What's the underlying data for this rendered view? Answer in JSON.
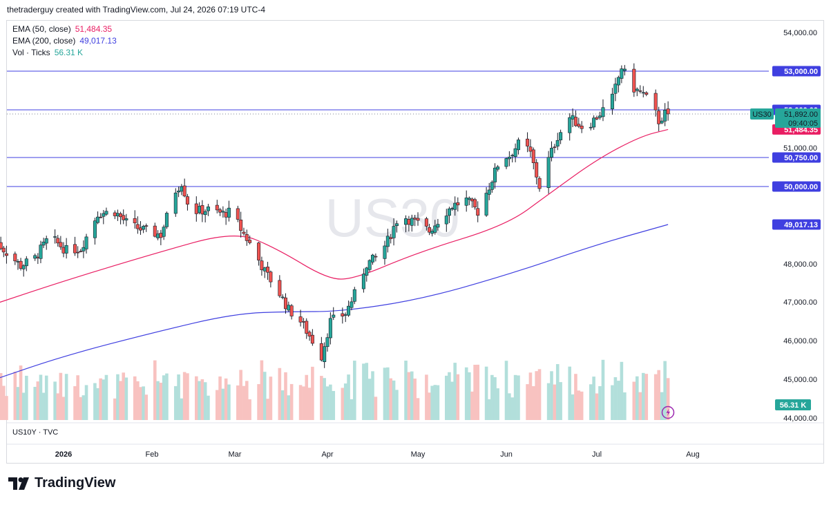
{
  "header": {
    "text": "thetraderguy created with TradingView.com, Jul 24, 2026 07:19 UTC-4"
  },
  "legend": [
    {
      "name": "EMA (50, close)",
      "value": "51,484.35",
      "color": "#e91e63"
    },
    {
      "name": "EMA (200, close)",
      "value": "49,017.13",
      "color": "#3f3fe0"
    },
    {
      "name": "Vol · Ticks",
      "value": "56.31 K",
      "color": "#26a69a"
    }
  ],
  "watermark": "US30",
  "symbol_label": "US30",
  "secondary_pane_label": "US10Y · TVC",
  "brand": "TradingView",
  "colors": {
    "up": "#26a69a",
    "down": "#ef5350",
    "ema50": "#e91e63",
    "ema200": "#3f3fe0",
    "level": "#3f3fe0",
    "vol_up": "#b2dfdb",
    "vol_down": "#f8c2c0"
  },
  "chart_data": {
    "type": "candlestick",
    "symbol": "US30",
    "timeframe": "daily",
    "ylim": [
      44000,
      54300
    ],
    "y_ticks": [
      "54,000.00",
      "51,000.00",
      "48,000.00",
      "47,000.00",
      "46,000.00",
      "45,000.00",
      "44,000.00"
    ],
    "x_ticks": [
      {
        "label": "2026",
        "date": "2026-01-01"
      },
      {
        "label": "Feb",
        "date": "2026-02-01"
      },
      {
        "label": "Mar",
        "date": "2026-03-01"
      },
      {
        "label": "Apr",
        "date": "2026-04-01"
      },
      {
        "label": "May",
        "date": "2026-05-01"
      },
      {
        "label": "Jun",
        "date": "2026-06-01"
      },
      {
        "label": "Jul",
        "date": "2026-07-01"
      },
      {
        "label": "Aug",
        "date": "2026-08-01"
      }
    ],
    "x_range": [
      "2025-12-07",
      "2026-09-07"
    ],
    "horizontal_levels": [
      {
        "price": 53000,
        "label": "53,000.00"
      },
      {
        "price": 52000,
        "label": "52,000.00"
      },
      {
        "price": 50750,
        "label": "50,750.00"
      },
      {
        "price": 50000,
        "label": "50,000.00"
      }
    ],
    "last_price": {
      "price": 51892,
      "label": "51,892.00",
      "countdown": "09:40:05"
    },
    "ema50_last": {
      "price": 51484.35,
      "label": "51,484.35"
    },
    "ema200_last": {
      "price": 49017.13,
      "label": "49,017.13"
    },
    "volume_last": {
      "label": "56.31 K"
    },
    "price_path": [
      [
        "2025-12-08",
        48600
      ],
      [
        "2025-12-12",
        48300
      ],
      [
        "2025-12-17",
        47950
      ],
      [
        "2025-12-22",
        48150
      ],
      [
        "2025-12-27",
        48700
      ],
      [
        "2026-01-02",
        48350
      ],
      [
        "2026-01-07",
        48400
      ],
      [
        "2026-01-13",
        49300
      ],
      [
        "2026-01-19",
        49350
      ],
      [
        "2026-01-24",
        49000
      ],
      [
        "2026-01-30",
        48850
      ],
      [
        "2026-02-04",
        48750
      ],
      [
        "2026-02-09",
        49900
      ],
      [
        "2026-02-11",
        50100
      ],
      [
        "2026-02-14",
        49350
      ],
      [
        "2026-02-20",
        49400
      ],
      [
        "2026-02-25",
        49300
      ],
      [
        "2026-02-28",
        49350
      ],
      [
        "2026-03-03",
        48900
      ],
      [
        "2026-03-07",
        48400
      ],
      [
        "2026-03-11",
        47800
      ],
      [
        "2026-03-15",
        47350
      ],
      [
        "2026-03-19",
        46800
      ],
      [
        "2026-03-23",
        46500
      ],
      [
        "2026-03-27",
        46000
      ],
      [
        "2026-03-30",
        45600
      ],
      [
        "2026-04-02",
        46500
      ],
      [
        "2026-04-07",
        46700
      ],
      [
        "2026-04-10",
        47200
      ],
      [
        "2026-04-14",
        48000
      ],
      [
        "2026-04-18",
        48200
      ],
      [
        "2026-04-21",
        48600
      ],
      [
        "2026-04-25",
        49300
      ],
      [
        "2026-04-28",
        49150
      ],
      [
        "2026-05-02",
        49000
      ],
      [
        "2026-05-05",
        48850
      ],
      [
        "2026-05-09",
        49200
      ],
      [
        "2026-05-13",
        49500
      ],
      [
        "2026-05-18",
        49650
      ],
      [
        "2026-05-22",
        49350
      ],
      [
        "2026-05-26",
        50000
      ],
      [
        "2026-05-30",
        50750
      ],
      [
        "2026-06-02",
        50800
      ],
      [
        "2026-06-06",
        51200
      ],
      [
        "2026-06-09",
        50850
      ],
      [
        "2026-06-12",
        50000
      ],
      [
        "2026-06-15",
        50700
      ],
      [
        "2026-06-18",
        51300
      ],
      [
        "2026-06-22",
        51800
      ],
      [
        "2026-06-27",
        51500
      ],
      [
        "2026-07-02",
        51900
      ],
      [
        "2026-07-06",
        52300
      ],
      [
        "2026-07-09",
        53100
      ],
      [
        "2026-07-12",
        52600
      ],
      [
        "2026-07-16",
        52400
      ],
      [
        "2026-07-19",
        52100
      ],
      [
        "2026-07-21",
        51700
      ],
      [
        "2026-07-23",
        51900
      ],
      [
        "2026-07-24",
        51892
      ]
    ],
    "ema50": [
      [
        "2025-12-08",
        46950
      ],
      [
        "2026-01-01",
        47550
      ],
      [
        "2026-02-01",
        48250
      ],
      [
        "2026-03-01",
        48850
      ],
      [
        "2026-03-15",
        48400
      ],
      [
        "2026-04-01",
        47600
      ],
      [
        "2026-04-10",
        47600
      ],
      [
        "2026-05-01",
        48300
      ],
      [
        "2026-06-01",
        49000
      ],
      [
        "2026-06-15",
        49800
      ],
      [
        "2026-07-01",
        50700
      ],
      [
        "2026-07-15",
        51300
      ],
      [
        "2026-07-24",
        51484.35
      ]
    ],
    "ema200": [
      [
        "2025-12-08",
        45000
      ],
      [
        "2026-01-01",
        45600
      ],
      [
        "2026-02-01",
        46200
      ],
      [
        "2026-03-01",
        46700
      ],
      [
        "2026-03-20",
        46750
      ],
      [
        "2026-04-05",
        46750
      ],
      [
        "2026-05-01",
        47050
      ],
      [
        "2026-06-01",
        47700
      ],
      [
        "2026-07-01",
        48500
      ],
      [
        "2026-07-24",
        49017.13
      ]
    ]
  }
}
